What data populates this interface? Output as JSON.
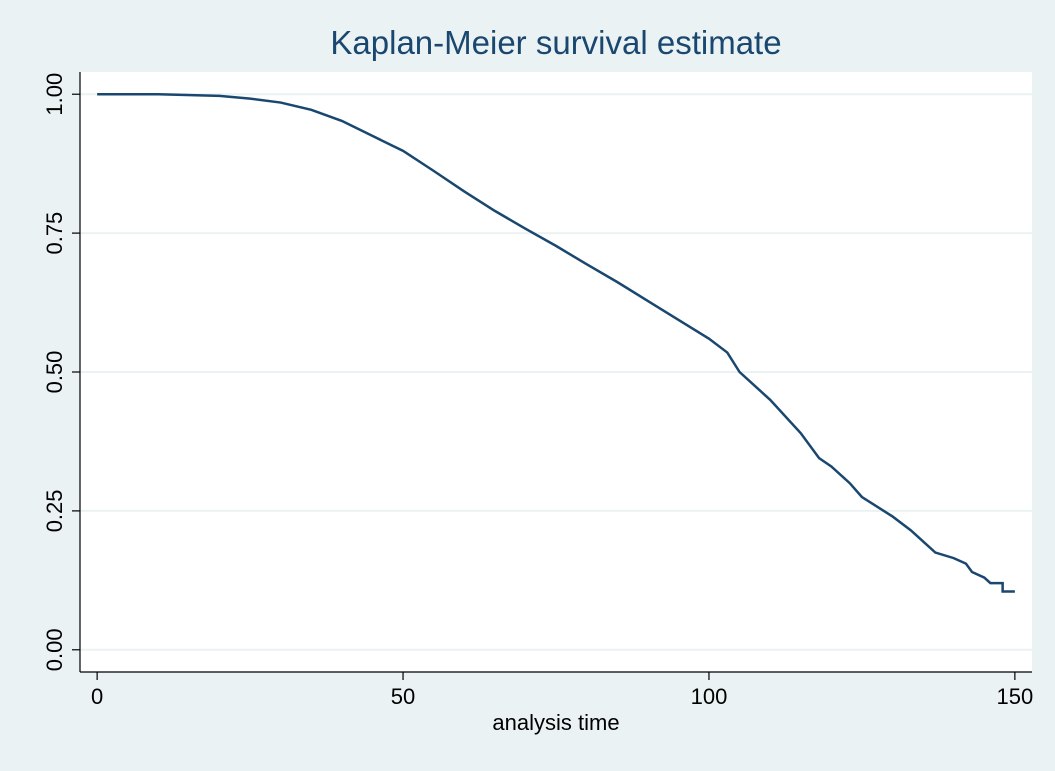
{
  "chart_data": {
    "type": "line",
    "title": "Kaplan-Meier survival estimate",
    "x_label": "analysis time",
    "x": [
      0,
      10,
      20,
      25,
      30,
      35,
      40,
      45,
      50,
      55,
      60,
      65,
      70,
      75,
      80,
      85,
      90,
      95,
      100,
      103,
      105,
      110,
      115,
      118,
      120,
      123,
      125,
      130,
      133,
      135,
      137,
      140,
      142,
      143,
      145,
      146,
      148,
      148,
      150
    ],
    "series": [
      {
        "color": "#1a476f",
        "values": [
          1.0,
          1.0,
          0.997,
          0.992,
          0.985,
          0.972,
          0.952,
          0.925,
          0.898,
          0.862,
          0.825,
          0.79,
          0.758,
          0.727,
          0.694,
          0.662,
          0.628,
          0.594,
          0.56,
          0.535,
          0.5,
          0.45,
          0.39,
          0.345,
          0.33,
          0.3,
          0.275,
          0.24,
          0.215,
          0.195,
          0.175,
          0.165,
          0.155,
          0.14,
          0.13,
          0.12,
          0.12,
          0.105,
          0.105
        ]
      }
    ],
    "xlim": [
      -2.8,
      152.8
    ],
    "xticks": [
      0,
      50,
      100,
      150
    ],
    "ylim": [
      -0.04,
      1.04
    ],
    "yticks": [
      {
        "value": 0,
        "label": "0.00"
      },
      {
        "value": 0.25,
        "label": "0.25"
      },
      {
        "value": 0.5,
        "label": "0.50"
      },
      {
        "value": 0.75,
        "label": "0.75"
      },
      {
        "value": 1,
        "label": "1.00"
      }
    ],
    "grid": true
  }
}
